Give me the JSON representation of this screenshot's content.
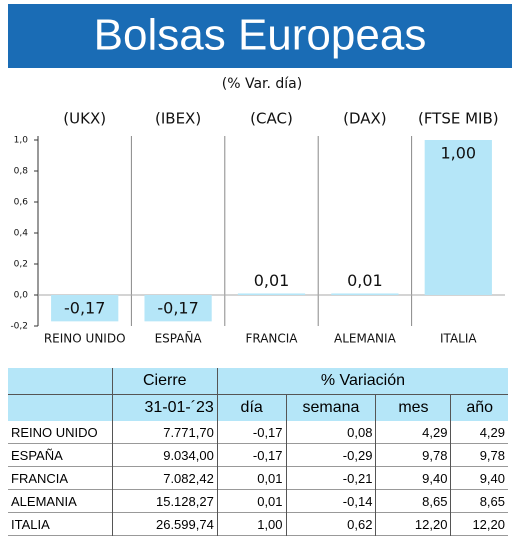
{
  "chart_data": {
    "type": "bar",
    "title": "Bolsas Europeas",
    "subtitle": "(% Var. día)",
    "indices": [
      "(UKX)",
      "(IBEX)",
      "(CAC)",
      "(DAX)",
      "(FTSE MIB)"
    ],
    "categories": [
      "REINO UNIDO",
      "ESPAÑA",
      "FRANCIA",
      "ALEMANIA",
      "ITALIA"
    ],
    "values": [
      -0.17,
      -0.17,
      0.01,
      0.01,
      1.0
    ],
    "value_labels": [
      "-0,17",
      "-0,17",
      "0,01",
      "0,01",
      "1,00"
    ],
    "color": "#b5e6f8",
    "ylim": [
      -0.2,
      1.0
    ],
    "yticks": [
      {
        "value": -0.2,
        "label": "-0,2"
      },
      {
        "value": 0,
        "label": "0,0"
      },
      {
        "value": 0.2,
        "label": "0,2"
      },
      {
        "value": 0.4,
        "label": "0,4"
      },
      {
        "value": 0.6,
        "label": "0,6"
      },
      {
        "value": 0.8,
        "label": "0,8"
      },
      {
        "value": 1.0,
        "label": "1,0"
      }
    ]
  },
  "table": {
    "header": [
      [
        "Cierre",
        "% Variación"
      ],
      [
        "31-01-´23",
        "día",
        "semana",
        "mes",
        "año"
      ]
    ],
    "rows": [
      [
        "REINO UNIDO",
        "7.771,70",
        "-0,17",
        "0,08",
        "4,29",
        "4,29"
      ],
      [
        "ESPAÑA",
        "9.034,00",
        "-0,17",
        "-0,29",
        "9,78",
        "9,78"
      ],
      [
        "FRANCIA",
        "7.082,42",
        "0,01",
        "-0,21",
        "9,40",
        "9,40"
      ],
      [
        "ALEMANIA",
        "15.128,27",
        "0,01",
        "-0,14",
        "8,65",
        "8,65"
      ],
      [
        "ITALIA",
        "26.599,74",
        "1,00",
        "0,62",
        "12,20",
        "12,20"
      ]
    ]
  }
}
